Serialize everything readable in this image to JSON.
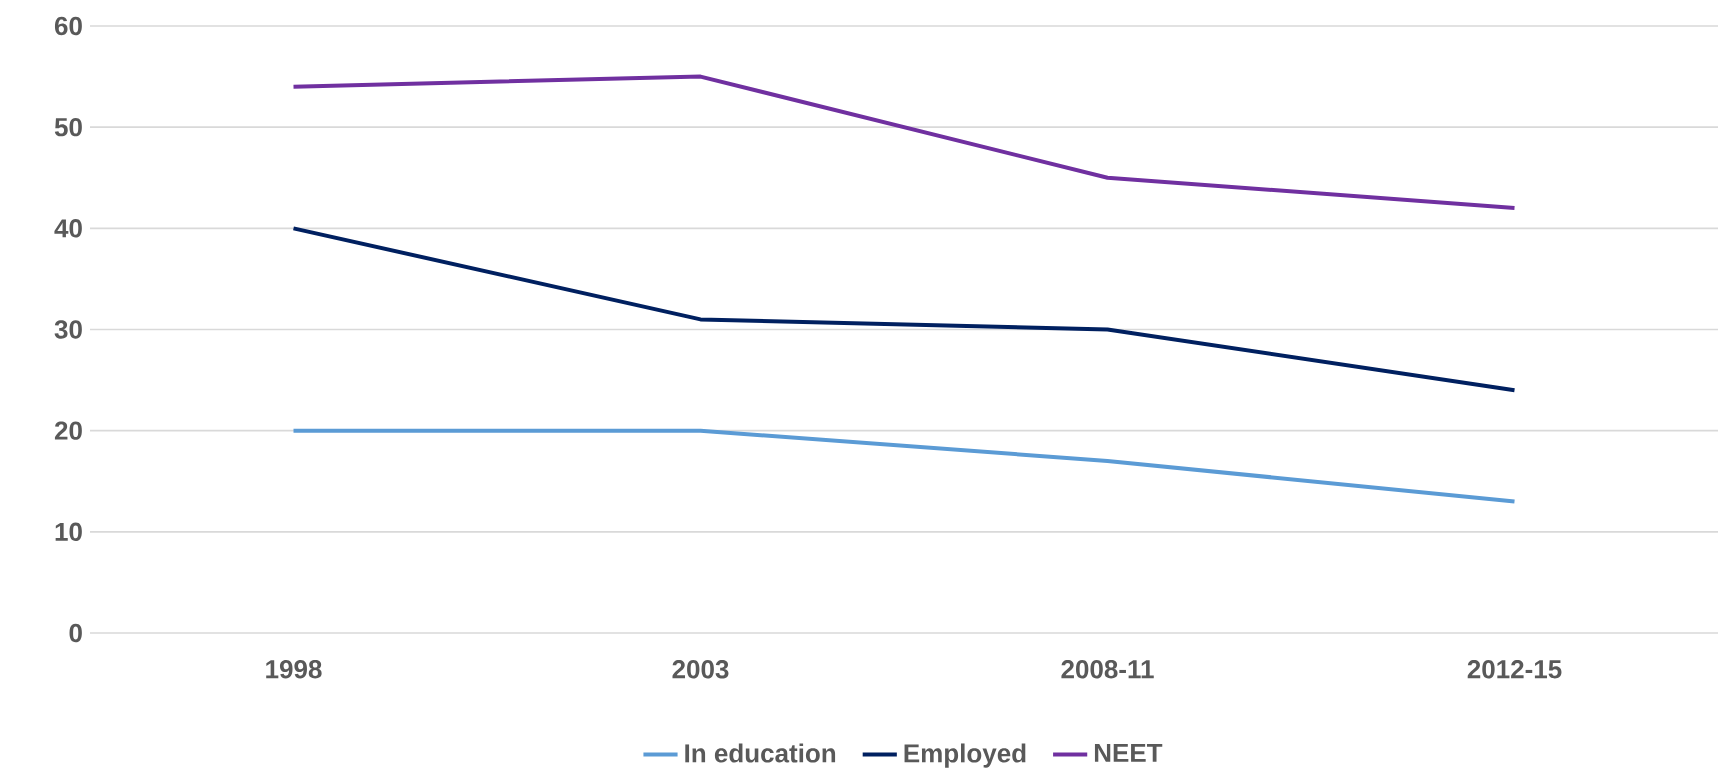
{
  "chart_data": {
    "type": "line",
    "categories": [
      "1998",
      "2003",
      "2008-11",
      "2012-15"
    ],
    "series": [
      {
        "name": "In education",
        "color": "#5b9bd5",
        "values": [
          20,
          20,
          17,
          13
        ]
      },
      {
        "name": "Employed",
        "color": "#002060",
        "values": [
          40,
          31,
          30,
          24
        ]
      },
      {
        "name": "NEET",
        "color": "#7030a0",
        "values": [
          54,
          55,
          45,
          42
        ]
      }
    ],
    "ylim": [
      0,
      60
    ],
    "yticks": [
      0,
      10,
      20,
      30,
      40,
      50,
      60
    ],
    "grid": "y",
    "legend": "bottom",
    "marker": "none",
    "line_style": "solid"
  }
}
